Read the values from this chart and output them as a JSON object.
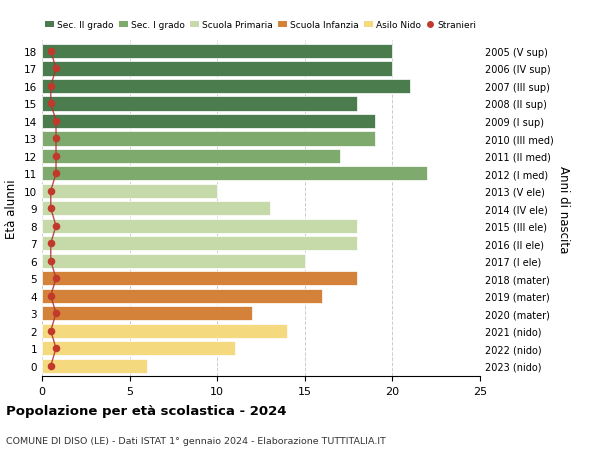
{
  "ages": [
    18,
    17,
    16,
    15,
    14,
    13,
    12,
    11,
    10,
    9,
    8,
    7,
    6,
    5,
    4,
    3,
    2,
    1,
    0
  ],
  "bar_values": [
    20,
    20,
    21,
    18,
    19,
    19,
    17,
    22,
    10,
    13,
    18,
    18,
    15,
    18,
    16,
    12,
    14,
    11,
    6
  ],
  "bar_colors": [
    "#4a7c4e",
    "#4a7c4e",
    "#4a7c4e",
    "#4a7c4e",
    "#4a7c4e",
    "#7faa6e",
    "#7faa6e",
    "#7faa6e",
    "#c5daa8",
    "#c5daa8",
    "#c5daa8",
    "#c5daa8",
    "#c5daa8",
    "#d4813a",
    "#d4813a",
    "#d4813a",
    "#f5d97e",
    "#f5d97e",
    "#f5d97e"
  ],
  "stranieri_x": [
    0.5,
    0.8,
    0.5,
    0.5,
    0.8,
    0.8,
    0.8,
    0.8,
    0.5,
    0.5,
    0.8,
    0.5,
    0.5,
    0.8,
    0.5,
    0.8,
    0.5,
    0.8,
    0.5
  ],
  "right_labels": [
    "2005 (V sup)",
    "2006 (IV sup)",
    "2007 (III sup)",
    "2008 (II sup)",
    "2009 (I sup)",
    "2010 (III med)",
    "2011 (II med)",
    "2012 (I med)",
    "2013 (V ele)",
    "2014 (IV ele)",
    "2015 (III ele)",
    "2016 (II ele)",
    "2017 (I ele)",
    "2018 (mater)",
    "2019 (mater)",
    "2020 (mater)",
    "2021 (nido)",
    "2022 (nido)",
    "2023 (nido)"
  ],
  "legend_labels": [
    "Sec. II grado",
    "Sec. I grado",
    "Scuola Primaria",
    "Scuola Infanzia",
    "Asilo Nido",
    "Stranieri"
  ],
  "legend_colors": [
    "#4a7c4e",
    "#7faa6e",
    "#c5daa8",
    "#d4813a",
    "#f5d97e",
    "#c0392b"
  ],
  "ylabel": "Età alunni",
  "ylabel_right": "Anni di nascita",
  "title": "Popolazione per età scolastica - 2024",
  "subtitle": "COMUNE DI DISO (LE) - Dati ISTAT 1° gennaio 2024 - Elaborazione TUTTITALIA.IT",
  "xlim": [
    0,
    25
  ],
  "stranieri_color": "#c0392b",
  "stranieri_line_color": "#b03030",
  "bar_height": 0.82,
  "grid_color": "#cccccc"
}
